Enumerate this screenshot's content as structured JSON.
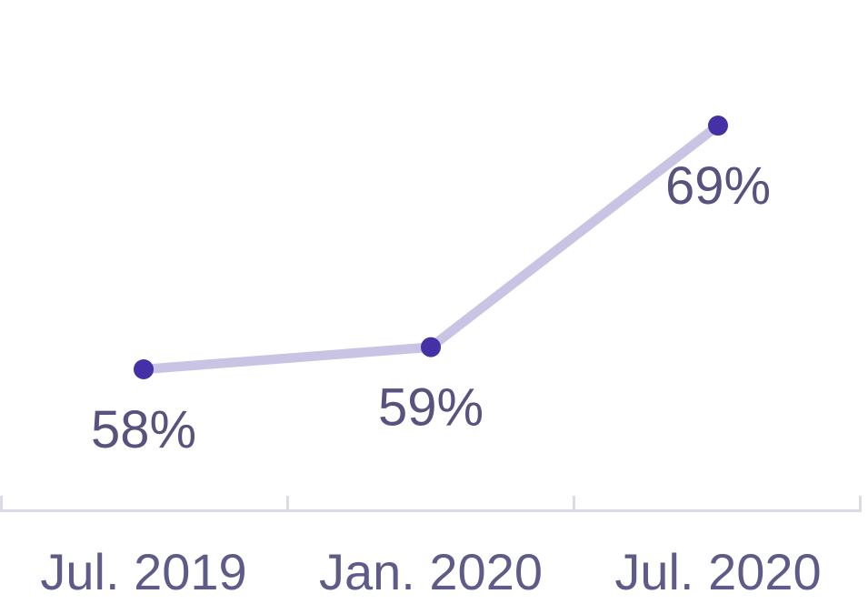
{
  "chart_data": {
    "type": "line",
    "title": "",
    "xlabel": "",
    "ylabel": "",
    "categories": [
      "Jul. 2019",
      "Jan. 2020",
      "Jul. 2020"
    ],
    "series": [
      {
        "name": "share-percent",
        "values": [
          58,
          59,
          69
        ],
        "value_labels": [
          "58%",
          "59%",
          "69%"
        ]
      }
    ],
    "ylim": [
      52,
      75
    ],
    "grid": false,
    "legend": false,
    "colors": {
      "point": "#4531a5",
      "line": "#c9c3e4",
      "axis": "#dcdbe5",
      "value_label": "#57527e",
      "axis_label": "#5f5b89",
      "background": "#ffffff"
    }
  }
}
